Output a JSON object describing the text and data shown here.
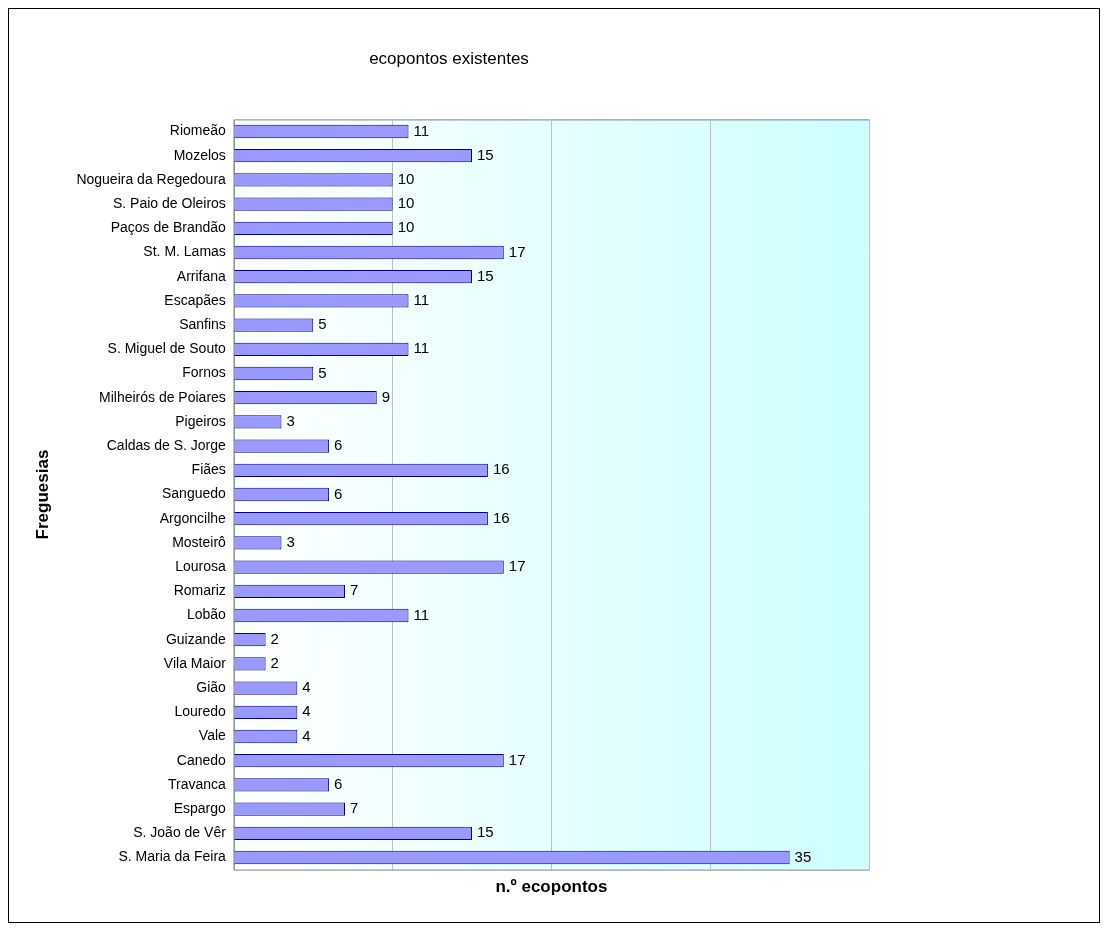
{
  "chart_data": {
    "type": "bar",
    "orientation": "horizontal",
    "title": "ecopontos existentes",
    "xlabel": "n.º ecopontos",
    "ylabel": "Freguesias",
    "categories": [
      "Riomeão",
      "Mozelos",
      "Nogueira da Regedoura",
      "S. Paio de Oleiros",
      "Paços de Brandão",
      "St. M. Lamas",
      "Arrifana",
      "Escapães",
      "Sanfins",
      "S. Miguel de Souto",
      "Fornos",
      "Milheirós de Poiares",
      "Pigeiros",
      "Caldas de S. Jorge",
      "Fiães",
      "Sanguedo",
      "Argoncilhe",
      "Mosteirô",
      "Lourosa",
      "Romariz",
      "Lobão",
      "Guizande",
      "Vila Maior",
      "Gião",
      "Louredo",
      "Vale",
      "Canedo",
      "Travanca",
      "Espargo",
      "S. João de Vêr",
      "S. Maria da Feira"
    ],
    "values": [
      11,
      15,
      10,
      10,
      10,
      17,
      15,
      11,
      5,
      11,
      5,
      9,
      3,
      6,
      16,
      6,
      16,
      3,
      17,
      7,
      11,
      2,
      2,
      4,
      4,
      4,
      17,
      6,
      7,
      15,
      35
    ],
    "color": "#9999ff",
    "xlim": [
      0,
      40
    ],
    "xticks": [
      {
        "value": 0,
        "label": null
      },
      {
        "value": 10,
        "label": null
      },
      {
        "value": 20,
        "label": null
      },
      {
        "value": 30,
        "label": null
      },
      {
        "value": 40,
        "label": null
      }
    ],
    "tick_labels": "y",
    "grid": "x",
    "data_labels": true,
    "legend": false
  }
}
